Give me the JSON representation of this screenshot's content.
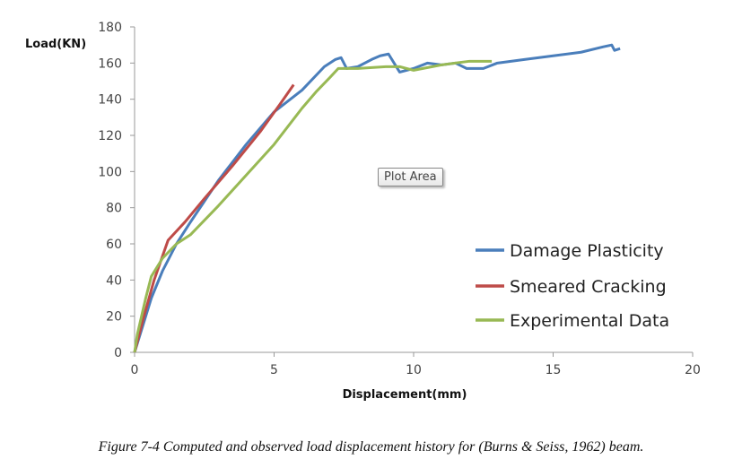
{
  "chart_data": {
    "type": "line",
    "title": "",
    "xlabel": "Displacement(mm)",
    "ylabel": "Load(KN)",
    "xlim": [
      0,
      20
    ],
    "ylim": [
      0,
      180
    ],
    "xticks": [
      0,
      5,
      10,
      15,
      20
    ],
    "yticks": [
      0,
      20,
      40,
      60,
      80,
      100,
      120,
      140,
      160,
      180
    ],
    "grid": false,
    "legend_position": "right",
    "series": [
      {
        "name": "Damage Plasticity",
        "color": "#4a7ebb",
        "x": [
          0,
          0.3,
          0.6,
          1,
          1.5,
          2,
          3,
          4,
          5,
          6,
          6.8,
          7.2,
          7.4,
          7.6,
          8,
          8.5,
          8.8,
          9.1,
          9.5,
          10,
          10.5,
          11,
          11.5,
          11.9,
          12.5,
          13,
          14,
          15,
          16,
          16.8,
          17.1,
          17.2,
          17.4
        ],
        "y": [
          0,
          15,
          30,
          45,
          60,
          72,
          95,
          115,
          133,
          145,
          158,
          162,
          163,
          157,
          158,
          162,
          164,
          165,
          155,
          157,
          160,
          159,
          160,
          157,
          157,
          160,
          162,
          164,
          166,
          169,
          170,
          167,
          168
        ]
      },
      {
        "name": "Smeared Cracking",
        "color": "#be4b48",
        "x": [
          0,
          0.3,
          0.7,
          1.2,
          1.8,
          2.5,
          3.5,
          4.5,
          5.2,
          5.7
        ],
        "y": [
          0,
          18,
          40,
          62,
          72,
          85,
          103,
          122,
          137,
          148
        ]
      },
      {
        "name": "Experimental Data",
        "color": "#98b954",
        "x": [
          0,
          0.1,
          0.4,
          0.6,
          1,
          1.5,
          2,
          2.5,
          3,
          4,
          5,
          6,
          6.5,
          7,
          7.3,
          8,
          9,
          9.5,
          10,
          11,
          12,
          12.8
        ],
        "y": [
          0,
          10,
          30,
          42,
          52,
          60,
          65,
          73,
          81,
          98,
          115,
          135,
          144,
          152,
          157,
          157,
          158,
          158,
          156,
          159,
          161,
          161
        ]
      }
    ]
  },
  "tooltip": "Plot Area",
  "caption": "Figure 7-4 Computed and observed load displacement history for (Burns & Seiss, 1962) beam."
}
